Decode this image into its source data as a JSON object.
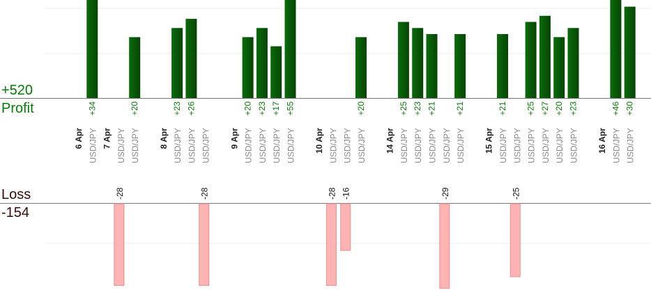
{
  "summary": {
    "profit_value": "+520",
    "profit_label": "Profit",
    "loss_label": "Loss",
    "loss_value": "-154"
  },
  "colors": {
    "profit_bar": "#0b6b0b",
    "profit_bar_dark": "#064506",
    "loss_bar": "#ffb3b3",
    "loss_bar_edge": "#e89090",
    "profit_label": "#0a7a0a",
    "date_label": "#222222",
    "pair_label": "#8a8a8a"
  },
  "chart_data": {
    "type": "bar",
    "title": "",
    "xlabel": "",
    "ylabel": "",
    "grid": true,
    "columns": [
      {
        "date": "6 Apr"
      },
      {
        "pair": "USD/JPY",
        "value": 34,
        "label": "+34"
      },
      {
        "date": "7 Apr"
      },
      {
        "pair": "USD/JPY",
        "value": -28,
        "label": "-28"
      },
      {
        "pair": "USD/JPY",
        "value": 20,
        "label": "+20"
      },
      {
        "date": ""
      },
      {
        "date": "8 Apr"
      },
      {
        "pair": "USD/JPY",
        "value": 23,
        "label": "+23"
      },
      {
        "pair": "USD/JPY",
        "value": 26,
        "label": "+26"
      },
      {
        "pair": "USD/JPY",
        "value": -28,
        "label": "-28"
      },
      {
        "date": ""
      },
      {
        "date": "9 Apr"
      },
      {
        "pair": "USD/JPY",
        "value": 20,
        "label": "+20"
      },
      {
        "pair": "USD/JPY",
        "value": 23,
        "label": "+23"
      },
      {
        "pair": "USD/JPY",
        "value": 17,
        "label": "+17"
      },
      {
        "pair": "USD/JPY",
        "value": 55,
        "label": "+55"
      },
      {
        "date": ""
      },
      {
        "date": "10 Apr"
      },
      {
        "pair": "USD/JPY",
        "value": -28,
        "label": "-28"
      },
      {
        "pair": "USD/JPY",
        "value": -16,
        "label": "-16"
      },
      {
        "pair": "USD/JPY",
        "value": 20,
        "label": "+20"
      },
      {
        "date": ""
      },
      {
        "date": "14 Apr"
      },
      {
        "pair": "USD/JPY",
        "value": 25,
        "label": "+25"
      },
      {
        "pair": "USD/JPY",
        "value": 23,
        "label": "+23"
      },
      {
        "pair": "USD/JPY",
        "value": 21,
        "label": "+21"
      },
      {
        "pair": "USD/JPY",
        "value": -29,
        "label": "-29"
      },
      {
        "pair": "USD/JPY",
        "value": 21,
        "label": "+21"
      },
      {
        "date": ""
      },
      {
        "date": "15 Apr"
      },
      {
        "pair": "USD/JPY",
        "value": 21,
        "label": "+21"
      },
      {
        "pair": "USD/JPY",
        "value": -25,
        "label": "-25"
      },
      {
        "pair": "USD/JPY",
        "value": 25,
        "label": "+25"
      },
      {
        "pair": "USD/JPY",
        "value": 27,
        "label": "+27"
      },
      {
        "pair": "USD/JPY",
        "value": 20,
        "label": "+20"
      },
      {
        "pair": "USD/JPY",
        "value": 23,
        "label": "+23"
      },
      {
        "date": ""
      },
      {
        "date": "16 Apr"
      },
      {
        "pair": "USD/JPY",
        "value": 46,
        "label": "+46"
      },
      {
        "pair": "USD/JPY",
        "value": 30,
        "label": "+30"
      }
    ]
  }
}
